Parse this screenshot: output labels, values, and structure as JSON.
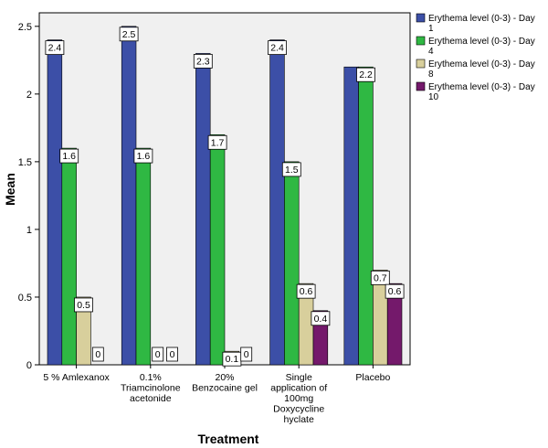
{
  "chart_data": {
    "type": "bar",
    "xlabel": "Treatment",
    "ylabel": "Mean",
    "ylim": [
      0,
      2.6
    ],
    "yticks": [
      "0",
      "0.5",
      "1",
      "1.5",
      "2",
      "2.5"
    ],
    "categories": [
      [
        "5 % Amlexanox"
      ],
      [
        "0.1%",
        "Triamcinolone",
        "acetonide"
      ],
      [
        "20%",
        "Benzocaine gel"
      ],
      [
        "Single",
        "application of",
        "100mg",
        "Doxycycline",
        "hyclate"
      ],
      [
        "Placebo"
      ]
    ],
    "series": [
      {
        "name": [
          "Erythema level (0-3) - Day",
          "1"
        ],
        "color": "#3c4fa7",
        "values": [
          2.4,
          2.5,
          2.3,
          2.4,
          2.2
        ],
        "labels": [
          "2.4",
          "2.5",
          "2.3",
          "2.4",
          null
        ]
      },
      {
        "name": [
          "Erythema level (0-3) - Day",
          "4"
        ],
        "color": "#2fb843",
        "values": [
          1.6,
          1.6,
          1.7,
          1.5,
          2.2
        ],
        "labels": [
          "1.6",
          "1.6",
          "1.7",
          "1.5",
          "2.2"
        ]
      },
      {
        "name": [
          "Erythema level (0-3) - Day",
          "8"
        ],
        "color": "#d8cf9c",
        "values": [
          0.5,
          0,
          0.1,
          0.6,
          0.7
        ],
        "labels": [
          "0.5",
          "0",
          "0.1",
          "0.6",
          "0.7"
        ]
      },
      {
        "name": [
          "Erythema level (0-3) - Day",
          "10"
        ],
        "color": "#74196b",
        "values": [
          0,
          0,
          0,
          0.4,
          0.6
        ],
        "labels": [
          "0",
          "0",
          "0",
          "0.4",
          "0.6"
        ]
      }
    ],
    "grid": false,
    "legend": "right"
  }
}
